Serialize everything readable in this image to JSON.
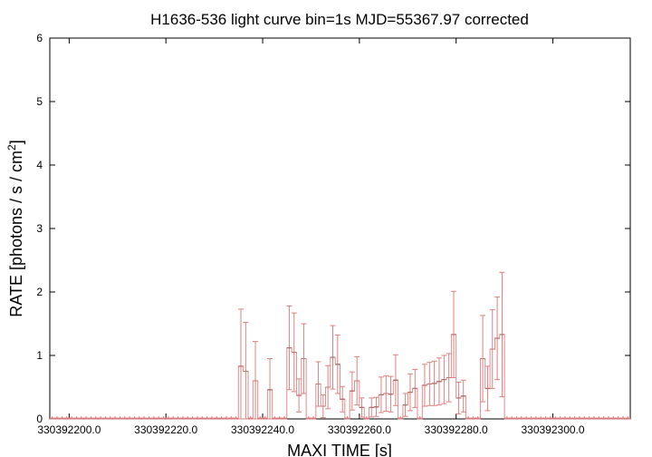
{
  "chart_data": {
    "type": "step-line-with-errorbars",
    "title": "H1636-536 light curve bin=1s MJD=55367.97 corrected",
    "xlabel": "MAXI TIME [s]",
    "ylabel_main": "RATE [photons / s / cm",
    "ylabel_sup": "2",
    "ylabel_close": "]",
    "xlim": [
      330392196,
      330392316
    ],
    "ylim": [
      0,
      6
    ],
    "xticks": [
      {
        "value": 330392200,
        "label": "330392200.0"
      },
      {
        "value": 330392220,
        "label": "330392220.0"
      },
      {
        "value": 330392240,
        "label": "330392240.0"
      },
      {
        "value": 330392260,
        "label": "330392260.0"
      },
      {
        "value": 330392280,
        "label": "330392280.0"
      },
      {
        "value": 330392300,
        "label": "330392300.0"
      }
    ],
    "yticks": [
      0,
      1,
      2,
      3,
      4,
      5,
      6
    ],
    "series_color": "#e08080",
    "step_color": "#000000",
    "points": [
      {
        "x": 330392235.5,
        "y": 0.83,
        "err": 0.9
      },
      {
        "x": 330392236.5,
        "y": 0.75,
        "err": 0.77
      },
      {
        "x": 330392238.5,
        "y": 0.6,
        "err": 0.62
      },
      {
        "x": 330392241.5,
        "y": 0.46,
        "err": 0.49
      },
      {
        "x": 330392245.5,
        "y": 1.12,
        "err": 0.66
      },
      {
        "x": 330392246.5,
        "y": 1.05,
        "err": 0.62
      },
      {
        "x": 330392247.5,
        "y": 0.37,
        "err": 0.26
      },
      {
        "x": 330392248.5,
        "y": 0.95,
        "err": 0.55
      },
      {
        "x": 330392251.5,
        "y": 0.55,
        "err": 0.35
      },
      {
        "x": 330392252.5,
        "y": 0.2,
        "err": 0.18
      },
      {
        "x": 330392253.5,
        "y": 0.5,
        "err": 0.34
      },
      {
        "x": 330392254.5,
        "y": 0.97,
        "err": 0.5
      },
      {
        "x": 330392255.5,
        "y": 0.86,
        "err": 0.46
      },
      {
        "x": 330392256.5,
        "y": 0.31,
        "err": 0.2
      },
      {
        "x": 330392258.5,
        "y": 0.44,
        "err": 0.3
      },
      {
        "x": 330392259.5,
        "y": 0.6,
        "err": 0.38
      },
      {
        "x": 330392260.5,
        "y": 0.18,
        "err": 0.15
      },
      {
        "x": 330392262.5,
        "y": 0.18,
        "err": 0.15
      },
      {
        "x": 330392263.5,
        "y": 0.19,
        "err": 0.15
      },
      {
        "x": 330392264.5,
        "y": 0.38,
        "err": 0.28
      },
      {
        "x": 330392265.5,
        "y": 0.4,
        "err": 0.28
      },
      {
        "x": 330392266.5,
        "y": 0.39,
        "err": 0.28
      },
      {
        "x": 330392267.5,
        "y": 0.61,
        "err": 0.4
      },
      {
        "x": 330392269.5,
        "y": 0.22,
        "err": 0.18
      },
      {
        "x": 330392270.5,
        "y": 0.42,
        "err": 0.29
      },
      {
        "x": 330392271.5,
        "y": 0.48,
        "err": 0.3
      },
      {
        "x": 330392273.5,
        "y": 0.53,
        "err": 0.33
      },
      {
        "x": 330392274.5,
        "y": 0.55,
        "err": 0.34
      },
      {
        "x": 330392275.5,
        "y": 0.56,
        "err": 0.35
      },
      {
        "x": 330392276.5,
        "y": 0.59,
        "err": 0.37
      },
      {
        "x": 330392277.5,
        "y": 0.62,
        "err": 0.38
      },
      {
        "x": 330392278.5,
        "y": 0.65,
        "err": 0.38
      },
      {
        "x": 330392279.5,
        "y": 1.33,
        "err": 0.68
      },
      {
        "x": 330392280.5,
        "y": 0.33,
        "err": 0.25
      },
      {
        "x": 330392281.5,
        "y": 0.36,
        "err": 0.25
      },
      {
        "x": 330392285.5,
        "y": 0.95,
        "err": 0.68
      },
      {
        "x": 330392286.5,
        "y": 0.48,
        "err": 0.35
      },
      {
        "x": 330392287.5,
        "y": 1.1,
        "err": 0.62
      },
      {
        "x": 330392288.5,
        "y": 1.27,
        "err": 0.65
      },
      {
        "x": 330392289.5,
        "y": 1.33,
        "err": 0.98
      }
    ]
  }
}
